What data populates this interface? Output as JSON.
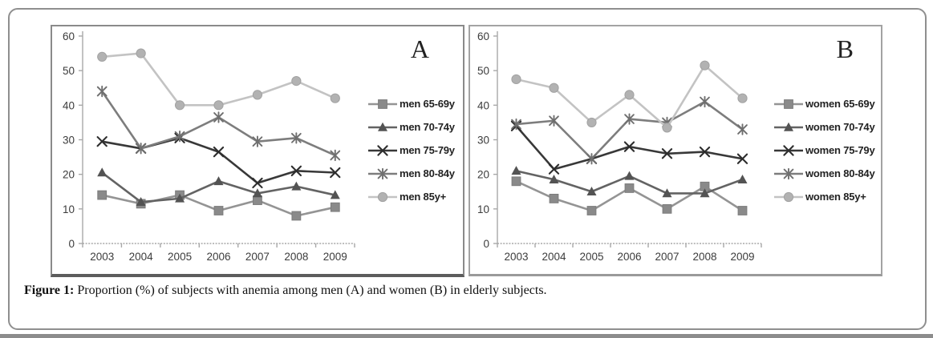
{
  "caption": {
    "prefix": "Figure 1:",
    "rest": " Proportion (%) of subjects with anemia among men (A) and women (B) in elderly subjects."
  },
  "colors": {
    "axis": "#a8a8a8",
    "tick_label": "#3c3c3c",
    "panel_border": "#8a8a8a",
    "frame_border": "#8f8f8f"
  },
  "chart_data": [
    {
      "type": "line",
      "panel_label": "A",
      "title": "",
      "xlabel": "",
      "ylabel": "",
      "categories": [
        "2003",
        "2004",
        "2005",
        "2006",
        "2007",
        "2008",
        "2009"
      ],
      "ylim": [
        0,
        60
      ],
      "yticks": [
        0,
        10,
        20,
        30,
        40,
        50,
        60
      ],
      "grid": false,
      "legend_position": "right",
      "series": [
        {
          "name": "men 65-69y",
          "marker": "square",
          "color": "#949494",
          "marker_color": "#8a8a8a",
          "values": [
            14,
            11.5,
            14,
            9.5,
            12.5,
            8,
            10.5
          ]
        },
        {
          "name": "men 70-74y",
          "marker": "triangle",
          "color": "#636363",
          "marker_color": "#535353",
          "values": [
            20.5,
            12,
            13,
            18,
            14.5,
            16.5,
            14
          ]
        },
        {
          "name": "men 75-79y",
          "marker": "x",
          "color": "#383838",
          "marker_color": "#2d2d2d",
          "values": [
            29.5,
            27.5,
            30.5,
            26.5,
            17.5,
            21,
            20.5
          ]
        },
        {
          "name": "men 80-84y",
          "marker": "star",
          "color": "#7d7d7d",
          "marker_color": "#6f6f6f",
          "values": [
            44,
            27.5,
            31,
            36.5,
            29.5,
            30.5,
            25.5
          ]
        },
        {
          "name": "men 85y+",
          "marker": "circle",
          "color": "#c3c3c3",
          "marker_color": "#b2b2b2",
          "values": [
            54,
            55,
            40,
            40,
            43,
            47,
            42
          ]
        }
      ]
    },
    {
      "type": "line",
      "panel_label": "B",
      "title": "",
      "xlabel": "",
      "ylabel": "",
      "categories": [
        "2003",
        "2004",
        "2005",
        "2006",
        "2007",
        "2008",
        "2009"
      ],
      "ylim": [
        0,
        60
      ],
      "yticks": [
        0,
        10,
        20,
        30,
        40,
        50,
        60
      ],
      "grid": false,
      "legend_position": "right",
      "series": [
        {
          "name": "women 65-69y",
          "marker": "square",
          "color": "#949494",
          "marker_color": "#8a8a8a",
          "values": [
            18,
            13,
            9.5,
            16,
            10,
            16.5,
            9.5
          ]
        },
        {
          "name": "women 70-74y",
          "marker": "triangle",
          "color": "#636363",
          "marker_color": "#535353",
          "values": [
            21,
            18.5,
            15,
            19.5,
            14.5,
            14.5,
            18.5
          ]
        },
        {
          "name": "women 75-79y",
          "marker": "x",
          "color": "#383838",
          "marker_color": "#2d2d2d",
          "values": [
            34,
            21.5,
            24.5,
            28,
            26,
            26.5,
            24.5
          ]
        },
        {
          "name": "women 80-84y",
          "marker": "star",
          "color": "#7d7d7d",
          "marker_color": "#6f6f6f",
          "values": [
            34.5,
            35.5,
            24.5,
            36,
            35,
            41,
            33
          ]
        },
        {
          "name": "women 85y+",
          "marker": "circle",
          "color": "#c3c3c3",
          "marker_color": "#b2b2b2",
          "values": [
            47.5,
            45,
            35,
            43,
            33.5,
            51.5,
            42
          ]
        }
      ]
    }
  ]
}
